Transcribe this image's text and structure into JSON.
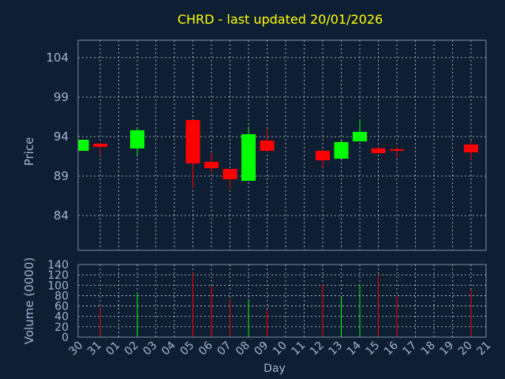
{
  "chart_data": {
    "type": "candlestick",
    "title": "CHRD - last updated 20/01/2026",
    "xlabel": "Day",
    "ylabel": "Price",
    "volume_label": "Volume (0000)",
    "grid": true,
    "price_ylim": [
      79.6,
      106.2
    ],
    "price_ticks": [
      84,
      89,
      94,
      99,
      104
    ],
    "volume_ylim": [
      0,
      140
    ],
    "volume_ticks": [
      0,
      20,
      40,
      60,
      80,
      100,
      120,
      140
    ],
    "x_ticks": [
      "30",
      "31",
      "01",
      "02",
      "03",
      "04",
      "05",
      "06",
      "07",
      "08",
      "09",
      "10",
      "11",
      "12",
      "13",
      "14",
      "15",
      "16",
      "17",
      "18",
      "19",
      "20",
      "21"
    ],
    "candles": [
      {
        "day": "30",
        "open": 92.2,
        "close": 93.6,
        "high": 93.6,
        "low": 92.2,
        "volume": 0
      },
      {
        "day": "31",
        "open": 93.1,
        "close": 92.7,
        "high": 93.2,
        "low": 91.6,
        "volume": 57
      },
      {
        "day": "02",
        "open": 92.5,
        "close": 94.8,
        "high": 95.2,
        "low": 91.7,
        "volume": 83
      },
      {
        "day": "05",
        "open": 96.1,
        "close": 90.6,
        "high": 96.1,
        "low": 87.5,
        "volume": 124
      },
      {
        "day": "06",
        "open": 90.8,
        "close": 90.0,
        "high": 91.9,
        "low": 89.5,
        "volume": 98
      },
      {
        "day": "07",
        "open": 89.9,
        "close": 88.6,
        "high": 89.9,
        "low": 87.4,
        "volume": 73
      },
      {
        "day": "08",
        "open": 88.4,
        "close": 94.3,
        "high": 95.3,
        "low": 88.4,
        "volume": 73
      },
      {
        "day": "09",
        "open": 93.5,
        "close": 92.2,
        "high": 94.9,
        "low": 92.0,
        "volume": 53
      },
      {
        "day": "12",
        "open": 92.2,
        "close": 91.0,
        "high": 92.3,
        "low": 90.1,
        "volume": 102
      },
      {
        "day": "13",
        "open": 91.2,
        "close": 93.3,
        "high": 93.6,
        "low": 91.2,
        "volume": 76
      },
      {
        "day": "14",
        "open": 93.4,
        "close": 94.6,
        "high": 96.2,
        "low": 93.4,
        "volume": 101
      },
      {
        "day": "15",
        "open": 92.5,
        "close": 91.9,
        "high": 92.8,
        "low": 91.9,
        "volume": 120
      },
      {
        "day": "16",
        "open": 92.4,
        "close": 92.3,
        "high": 92.7,
        "low": 91.3,
        "volume": 80
      },
      {
        "day": "20",
        "open": 93.0,
        "close": 92.0,
        "high": 93.5,
        "low": 91.0,
        "volume": 91
      }
    ]
  },
  "colors": {
    "background": "#0f1f33",
    "axis": "#7f8fa3",
    "grid": "#c8d0d8",
    "label": "#9fb4d4",
    "title": "#ffff00",
    "up": "#00ff00",
    "down": "#ff0000"
  }
}
